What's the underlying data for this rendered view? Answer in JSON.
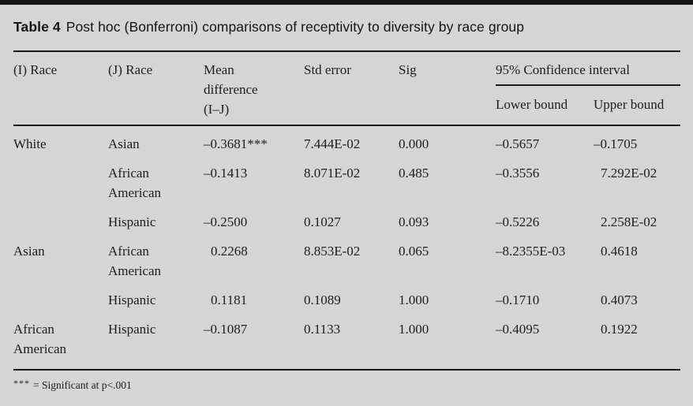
{
  "page": {
    "background_color": "#d5d5d6",
    "rule_color": "#1b1b1e",
    "top_bar_color": "#151517"
  },
  "table": {
    "label": "Table 4",
    "title": "Post hoc (Bonferroni) comparisons of receptivity to diversity by race group",
    "columns": [
      "(I) Race",
      "(J) Race",
      "Mean\ndifference\n(I–J)",
      "Std error",
      "Sig"
    ],
    "ci_group": {
      "label": "95% Confidence interval",
      "sub": [
        "Lower bound",
        "Upper bound"
      ]
    },
    "rows": [
      [
        "White",
        "Asian",
        "–0.3681***",
        "7.444E-02",
        "0.000",
        "–0.5657",
        "–0.1705"
      ],
      [
        "",
        "African American",
        "–0.1413",
        "8.071E-02",
        "0.485",
        "–0.3556",
        "7.292E-02"
      ],
      [
        "",
        "Hispanic",
        "–0.2500",
        "0.1027",
        "0.093",
        "–0.5226",
        "2.258E-02"
      ],
      [
        "Asian",
        "African American",
        "0.2268",
        "8.853E-02",
        "0.065",
        "–8.2355E-03",
        "0.4618"
      ],
      [
        "",
        "Hispanic",
        "0.1181",
        "0.1089",
        "1.000",
        "–0.1710",
        "0.4073"
      ],
      [
        "African American",
        "Hispanic",
        "–0.1087",
        "0.1133",
        "1.000",
        "–0.4095",
        "0.1922"
      ]
    ],
    "footnote": {
      "marker": "***",
      "text": "= Significant at p<.001"
    }
  }
}
